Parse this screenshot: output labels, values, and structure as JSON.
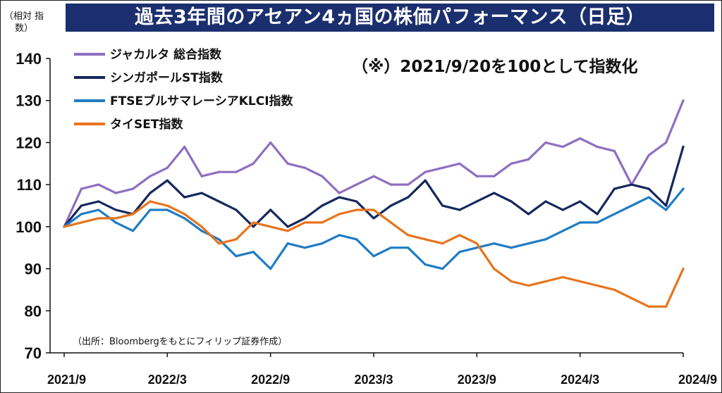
{
  "header": {
    "title": "過去3年間のアセアン4ヵ国の株価パフォーマンス（日足）",
    "unit_label": "（相対 指数）"
  },
  "colors": {
    "title_bg": "#1b2f6e",
    "title_text": "#ffffff"
  },
  "chart_data": {
    "type": "line",
    "title": "過去3年間のアセアン4ヵ国の株価パフォーマンス（日足）",
    "ylabel": "（相対 指数）",
    "ylim": [
      70,
      140
    ],
    "yticks": [
      140,
      130,
      120,
      110,
      100,
      90,
      80,
      70
    ],
    "x_ticks": [
      "2021/9",
      "2022/3",
      "2022/9",
      "2023/3",
      "2023/9",
      "2024/3",
      "2024/9"
    ],
    "grid": false,
    "legend_position": "top-left",
    "annotation": "（※）2021/9/20を100として指数化",
    "source": "（出所：Bloombergをもとにフィリップ証券作成）",
    "x": [
      "2021/9",
      "2021/10",
      "2021/11",
      "2021/12",
      "2022/1",
      "2022/2",
      "2022/3",
      "2022/4",
      "2022/5",
      "2022/6",
      "2022/7",
      "2022/8",
      "2022/9",
      "2022/10",
      "2022/11",
      "2022/12",
      "2023/1",
      "2023/2",
      "2023/3",
      "2023/4",
      "2023/5",
      "2023/6",
      "2023/7",
      "2023/8",
      "2023/9",
      "2023/10",
      "2023/11",
      "2023/12",
      "2024/1",
      "2024/2",
      "2024/3",
      "2024/4",
      "2024/5",
      "2024/6",
      "2024/7",
      "2024/8",
      "2024/9"
    ],
    "series": [
      {
        "name": "ジャカルタ 総合指数",
        "color": "#8e6fc0",
        "values": [
          100,
          109,
          110,
          108,
          109,
          112,
          114,
          119,
          112,
          113,
          113,
          115,
          120,
          115,
          114,
          112,
          108,
          110,
          112,
          110,
          110,
          113,
          114,
          115,
          112,
          112,
          115,
          116,
          120,
          119,
          121,
          119,
          118,
          110,
          117,
          120,
          130
        ]
      },
      {
        "name": "シンガポールST指数",
        "color": "#14285e",
        "values": [
          100,
          105,
          106,
          104,
          103,
          108,
          111,
          107,
          108,
          106,
          104,
          100,
          104,
          100,
          102,
          105,
          107,
          106,
          102,
          105,
          107,
          111,
          105,
          104,
          106,
          108,
          106,
          103,
          106,
          104,
          106,
          103,
          109,
          110,
          109,
          105,
          119
        ]
      },
      {
        "name": "FTSEブルサマレーシアKLCI指数",
        "color": "#1f7cc4",
        "values": [
          100,
          103,
          104,
          101,
          99,
          104,
          104,
          102,
          99,
          97,
          93,
          94,
          90,
          96,
          95,
          96,
          98,
          97,
          93,
          95,
          95,
          91,
          90,
          94,
          95,
          96,
          95,
          96,
          97,
          99,
          101,
          101,
          103,
          105,
          107,
          104,
          109
        ]
      },
      {
        "name": "タイSET指数",
        "color": "#e8741c",
        "values": [
          100,
          101,
          102,
          102,
          103,
          106,
          105,
          103,
          100,
          96,
          97,
          101,
          100,
          99,
          101,
          101,
          103,
          104,
          104,
          101,
          98,
          97,
          96,
          98,
          96,
          90,
          87,
          86,
          87,
          88,
          87,
          86,
          85,
          83,
          81,
          81,
          90
        ]
      }
    ]
  }
}
